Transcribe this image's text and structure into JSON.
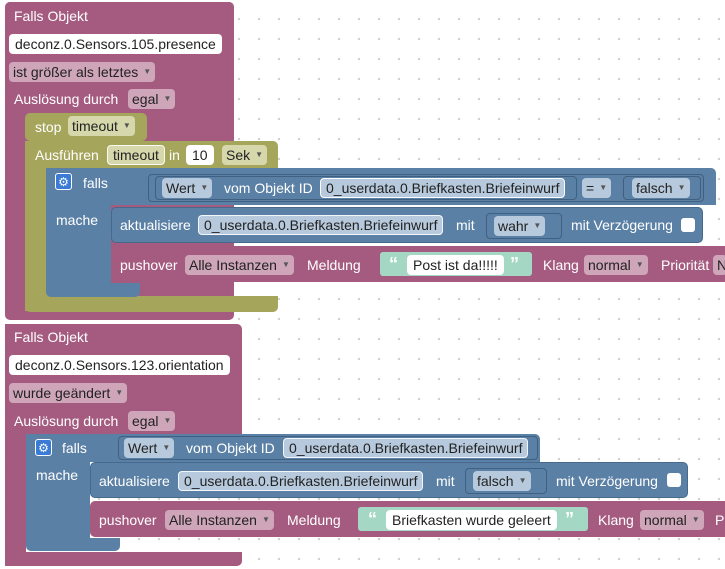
{
  "colors": {
    "purple": "#a55b80",
    "olive": "#a5a55b",
    "blue": "#5b80a5",
    "text_green": "#a5d7c5"
  },
  "block1": {
    "title": "Falls Objekt",
    "object_id": "deconz.0.Sensors.105.presence",
    "condition": "ist größer als letztes",
    "trigger_label": "Auslösung durch",
    "trigger_value": "egal",
    "stop_label": "stop",
    "stop_value": "timeout",
    "timeout": {
      "label": "Ausführen",
      "name": "timeout",
      "in_label": "in",
      "amount": "10",
      "unit": "Sek"
    },
    "if_block": {
      "falls_label": "falls",
      "mache_label": "mache",
      "wert_dropdown": "Wert",
      "vom_objekt_label": "vom Objekt ID",
      "object_id": "0_userdata.0.Briefkasten.Briefeinwurf",
      "operator": "=",
      "compare_value": "falsch"
    },
    "update": {
      "label": "aktualisiere",
      "object_id": "0_userdata.0.Briefkasten.Briefeinwurf",
      "mit_label": "mit",
      "value": "wahr",
      "delay_label": "mit Verzögerung"
    },
    "pushover": {
      "label": "pushover",
      "instance": "Alle Instanzen",
      "message_label": "Meldung",
      "message": "Post ist da!!!!!",
      "sound_label": "Klang",
      "sound": "normal",
      "priority_label": "Priorität",
      "priority_cut": "N"
    }
  },
  "block2": {
    "title": "Falls Objekt",
    "object_id": "deconz.0.Sensors.123.orientation",
    "condition": "wurde geändert",
    "trigger_label": "Auslösung durch",
    "trigger_value": "egal",
    "if_block": {
      "falls_label": "falls",
      "mache_label": "mache",
      "wert_dropdown": "Wert",
      "vom_objekt_label": "vom Objekt ID",
      "object_id": "0_userdata.0.Briefkasten.Briefeinwurf"
    },
    "update": {
      "label": "aktualisiere",
      "object_id": "0_userdata.0.Briefkasten.Briefeinwurf",
      "mit_label": "mit",
      "value": "falsch",
      "delay_label": "mit Verzögerung"
    },
    "pushover": {
      "label": "pushover",
      "instance": "Alle Instanzen",
      "message_label": "Meldung",
      "message": "Briefkasten wurde geleert",
      "sound_label": "Klang",
      "sound": "normal",
      "priority_cut": "P"
    }
  },
  "glyphs": {
    "quote_open": "“",
    "quote_close": "”",
    "arrow": "▼",
    "gear": "⚙"
  }
}
